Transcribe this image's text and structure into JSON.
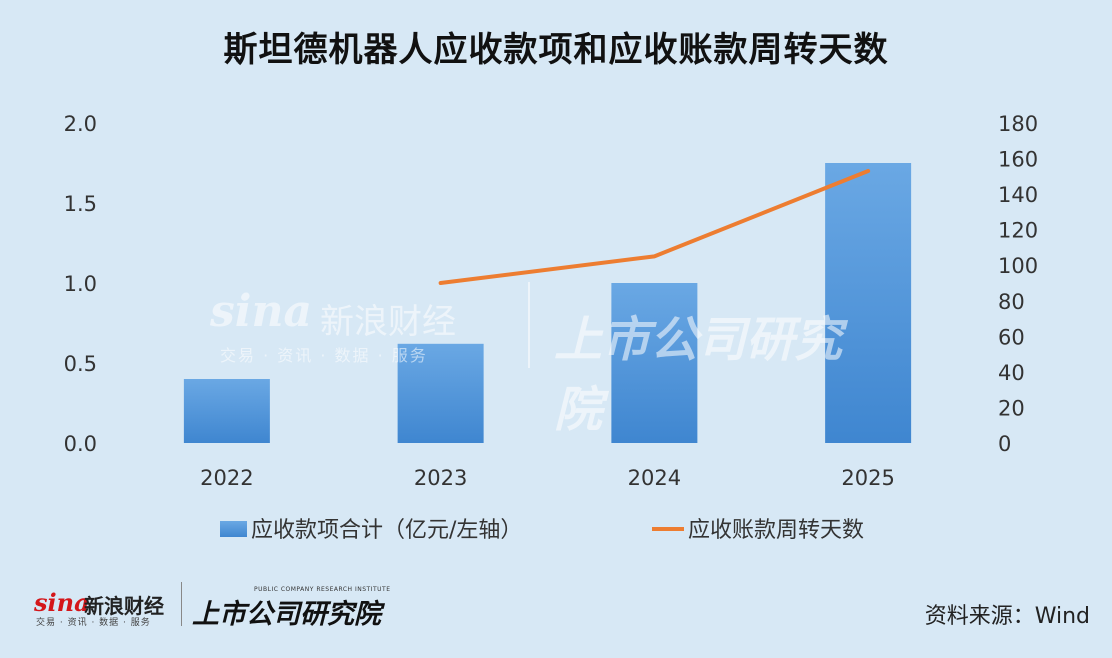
{
  "header": {
    "title": "斯坦德机器人应收款项和应收账款周转天数"
  },
  "chart_data": {
    "type": "bar",
    "title": "斯坦德机器人应收款项和应收账款周转天数",
    "categories": [
      "2022",
      "2023",
      "2024",
      "2025"
    ],
    "series": [
      {
        "name": "应收款项合计（亿元/左轴）",
        "type": "bar",
        "axis": "left",
        "values": [
          0.4,
          0.62,
          1.0,
          1.75
        ],
        "color": "#4a8fd6"
      },
      {
        "name": "应收账款周转天数",
        "type": "line",
        "axis": "right",
        "values": [
          null,
          90,
          105,
          153
        ],
        "color": "#ed7d31"
      }
    ],
    "y_left": {
      "ylim": [
        0,
        2.0
      ],
      "ticks": [
        "0.0",
        "0.5",
        "1.0",
        "1.5",
        "2.0"
      ]
    },
    "y_right": {
      "ylim": [
        0,
        180
      ],
      "ticks": [
        "0",
        "20",
        "40",
        "60",
        "80",
        "100",
        "120",
        "140",
        "160",
        "180"
      ]
    },
    "grid": false,
    "legend": "bottom"
  },
  "footer": {
    "source": "资料来源：Wind"
  },
  "logos": {
    "sina_mark": "sina",
    "sina_cn": "新浪财经",
    "sina_sub": "交易 · 资讯 · 数据 · 服务",
    "inst_en": "PUBLIC COMPANY RESEARCH INSTITUTE",
    "inst_cn": "上市公司研究院"
  }
}
